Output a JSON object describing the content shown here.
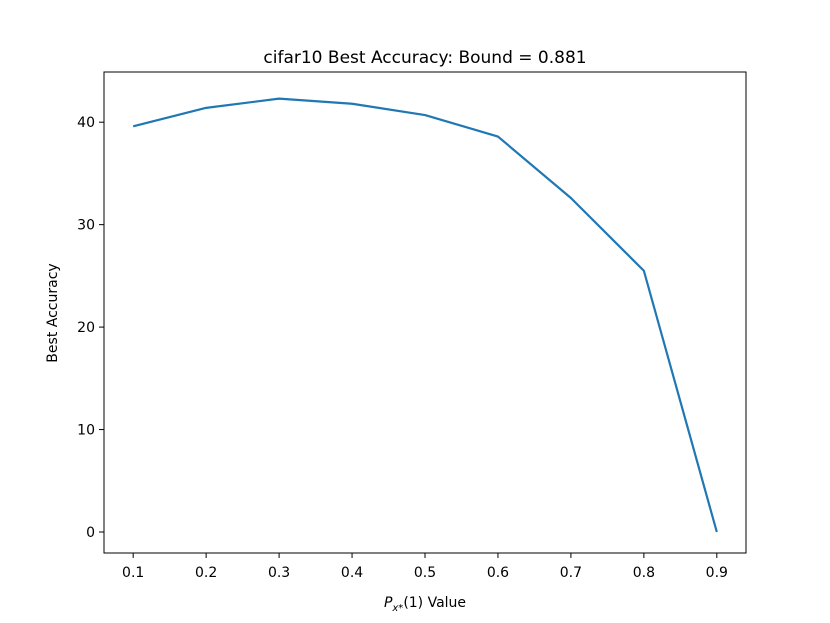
{
  "chart_data": {
    "type": "line",
    "title": "cifar10 Best Accuracy: Bound = 0.881",
    "xlabel": {
      "symbol": "P",
      "subscript": "x*",
      "text": "(1) Value"
    },
    "ylabel": "Best Accuracy",
    "x": [
      0.1,
      0.2,
      0.3,
      0.4,
      0.5,
      0.6,
      0.7,
      0.8,
      0.9
    ],
    "series": [
      {
        "color": "#1f77b4",
        "values": [
          39.6,
          41.4,
          42.3,
          41.8,
          40.7,
          38.6,
          32.6,
          25.5,
          0
        ]
      }
    ],
    "xlim": [
      0.06,
      0.94
    ],
    "ylim": [
      -2.05,
      44.9
    ],
    "xticks": [
      0.1,
      0.2,
      0.3,
      0.4,
      0.5,
      0.6,
      0.7,
      0.8,
      0.9
    ],
    "yticks": [
      0,
      10,
      20,
      30,
      40
    ],
    "grid": false
  }
}
